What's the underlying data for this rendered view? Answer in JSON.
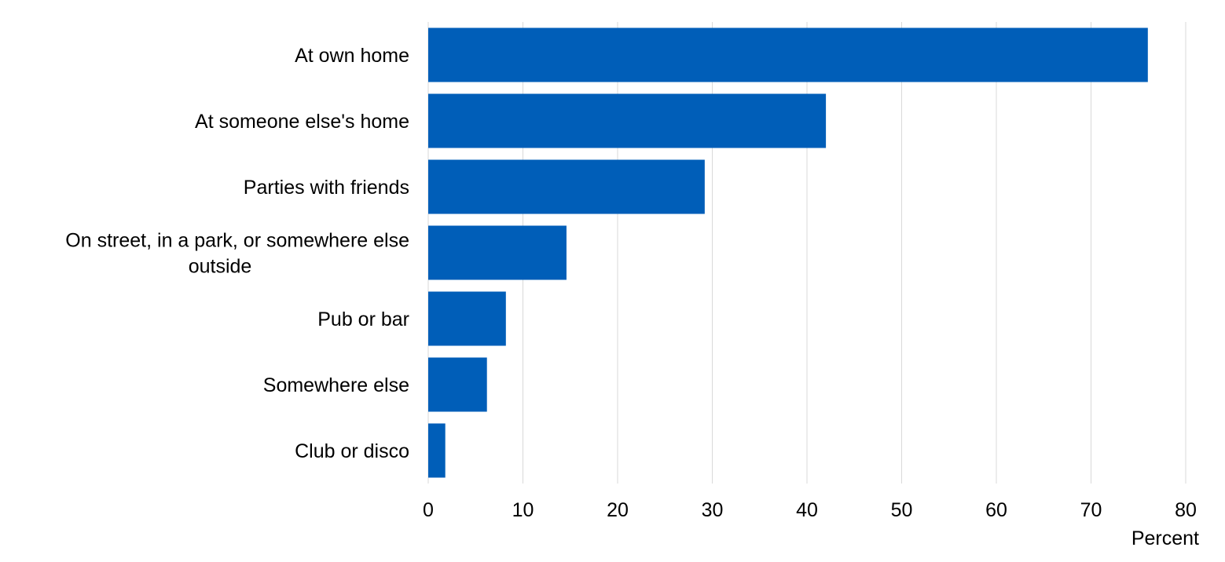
{
  "chart_data": {
    "type": "bar",
    "orientation": "horizontal",
    "categories": [
      "At own home",
      "At someone else's home",
      "Parties with friends",
      "On street, in a park, or somewhere else outside",
      "Pub or bar",
      "Somewhere else",
      "Club or disco"
    ],
    "category_lines": [
      [
        "At own home"
      ],
      [
        "At someone else's home"
      ],
      [
        "Parties with friends"
      ],
      [
        "On street, in a park, or somewhere else",
        "outside"
      ],
      [
        "Pub or bar"
      ],
      [
        "Somewhere else"
      ],
      [
        "Club or disco"
      ]
    ],
    "values": [
      76,
      42,
      29.2,
      14.6,
      8.2,
      6.2,
      1.8
    ],
    "xlabel": "Percent",
    "ylabel": "",
    "title": "",
    "xlim": [
      0,
      80
    ],
    "xticks": [
      "0",
      "10",
      "20",
      "30",
      "40",
      "50",
      "60",
      "70",
      "80"
    ],
    "grid": true,
    "legend": "none",
    "bar_color": "#005EB8",
    "grid_color": "#d9d9d9"
  }
}
